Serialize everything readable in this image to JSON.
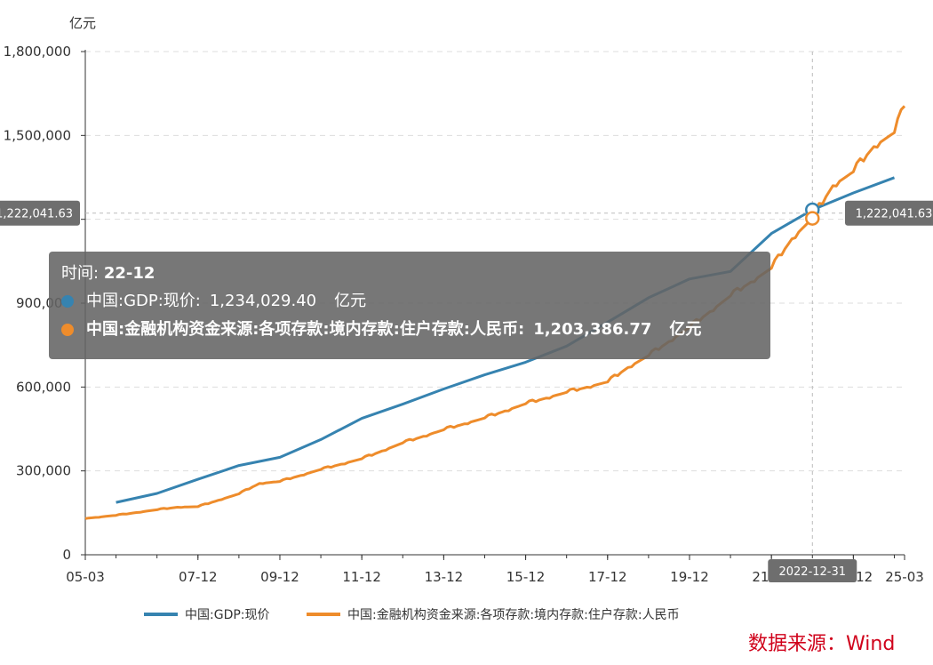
{
  "chart_data": {
    "type": "line",
    "title": "",
    "ylabel": "亿元",
    "xlabel": "",
    "ylim": [
      0,
      1800000
    ],
    "yticks": [
      0,
      300000,
      600000,
      900000,
      1200000,
      1500000,
      1800000
    ],
    "ytick_labels": [
      "0",
      "300,000",
      "600,000",
      "900,000",
      "1,200,000",
      "1,500,000",
      "1,800,000"
    ],
    "x_range": [
      "2005-03",
      "2025-03"
    ],
    "xtick_labels": [
      "05-03",
      "07-12",
      "09-12",
      "11-12",
      "13-12",
      "15-12",
      "17-12",
      "19-12",
      "21-12",
      "23-12",
      "25-03"
    ],
    "xtick_dates": [
      "2005-03",
      "2007-12",
      "2009-12",
      "2011-12",
      "2013-12",
      "2015-12",
      "2017-12",
      "2019-12",
      "2021-12",
      "2023-12",
      "2025-03"
    ],
    "grid": true,
    "legend_position": "bottom-center",
    "series": [
      {
        "name": "中国:GDP:现价",
        "color": "#3683b0",
        "x": [
          "2005-12",
          "2006-12",
          "2007-12",
          "2008-12",
          "2009-12",
          "2010-12",
          "2011-12",
          "2012-12",
          "2013-12",
          "2014-12",
          "2015-12",
          "2016-12",
          "2017-12",
          "2018-12",
          "2019-12",
          "2020-12",
          "2021-12",
          "2022-12",
          "2023-12",
          "2024-12"
        ],
        "values": [
          187319,
          219439,
          270092,
          319245,
          348518,
          412119,
          487940,
          538580,
          592963,
          643563,
          688858,
          746395,
          832036,
          919281,
          986515,
          1013567,
          1149237,
          1234029.4,
          1294272,
          1349084
        ]
      },
      {
        "name": "中国:金融机构资金来源:各项存款:境内存款:住户存款:人民币",
        "color": "#ee8c2b",
        "x": [
          "2005-03",
          "2005-12",
          "2006-12",
          "2007-06",
          "2007-12",
          "2008-12",
          "2009-06",
          "2009-12",
          "2010-12",
          "2011-12",
          "2012-12",
          "2013-12",
          "2014-12",
          "2015-12",
          "2016-12",
          "2017-12",
          "2018-06",
          "2018-12",
          "2019-12",
          "2020-12",
          "2021-12",
          "2022-06",
          "2022-12",
          "2023-06",
          "2023-12",
          "2024-06",
          "2024-12",
          "2025-03"
        ],
        "values": [
          130000,
          141000,
          161000,
          170000,
          172000,
          218000,
          255000,
          262000,
          305000,
          343000,
          400000,
          447000,
          489000,
          540000,
          581000,
          618000,
          670000,
          712000,
          813000,
          926000,
          1025000,
          1130000,
          1203386.77,
          1320000,
          1370000,
          1460000,
          1510000,
          1605000
        ]
      }
    ],
    "crosshair": {
      "x_label": "2022-12-31",
      "y_value_label": "1,222,041.63",
      "y_value": 1222041.63,
      "x_value": "2022-12"
    },
    "tooltip": {
      "time_label": "时间:",
      "time_value": "22-12",
      "rows": [
        {
          "label": "中国:GDP:现价:",
          "value": "1,234,029.40",
          "unit": "亿元",
          "color": "#3683b0"
        },
        {
          "label": "中国:金融机构资金来源:各项存款:境内存款:住户存款:人民币:",
          "value": "1,203,386.77",
          "unit": "亿元",
          "color": "#ee8c2b"
        }
      ]
    }
  },
  "source_label": "数据来源：Wind"
}
